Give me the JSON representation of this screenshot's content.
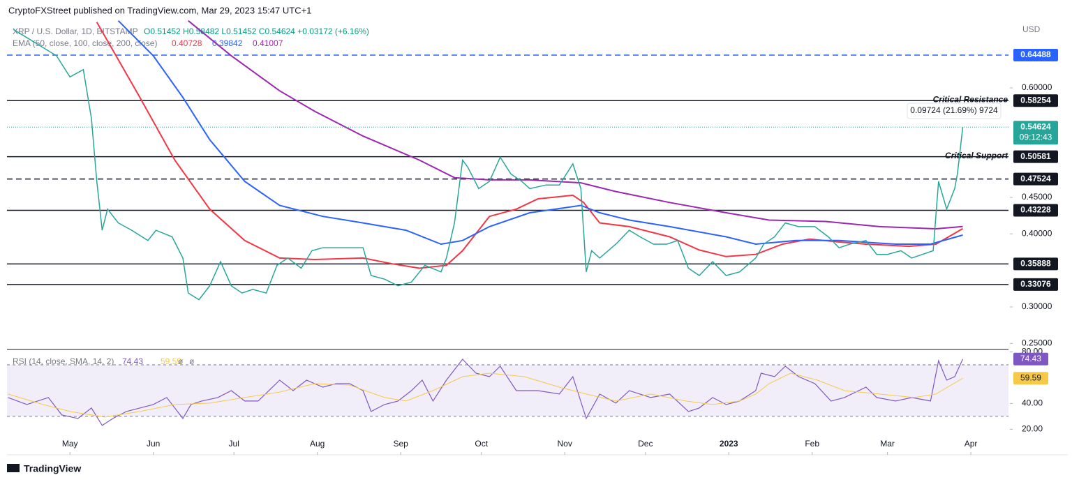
{
  "chart_data": {
    "type": "line",
    "publisher": "CryptoFXStreet published on TradingView.com, Mar 29, 2023 15:47 UTC+1",
    "title": "XRP / U.S. Dollar, 1D, BITSTAMP",
    "ohlc_text": "O0.51452 H0.58482 L0.51452 C0.54624 +0.03172 (+6.16%)",
    "currency": "USD",
    "brand": "TradingView",
    "xlim": [
      6.6,
      379
    ],
    "xticks": [
      {
        "value": 30,
        "label": "May"
      },
      {
        "value": 61,
        "label": "Jun"
      },
      {
        "value": 91,
        "label": "Jul"
      },
      {
        "value": 122,
        "label": "Aug"
      },
      {
        "value": 153,
        "label": "Sep"
      },
      {
        "value": 183,
        "label": "Oct"
      },
      {
        "value": 214,
        "label": "Nov"
      },
      {
        "value": 244,
        "label": "Dec"
      },
      {
        "value": 275,
        "label": "2023"
      },
      {
        "value": 306,
        "label": "Feb"
      },
      {
        "value": 334,
        "label": "Mar"
      },
      {
        "value": 365,
        "label": "Apr"
      }
    ],
    "ylim": [
      0.2427,
      0.6917
    ],
    "yticks": [
      {
        "value": 0.6,
        "label": "0.60000"
      },
      {
        "value": 0.45,
        "label": "0.45000"
      },
      {
        "value": 0.4,
        "label": "0.40000"
      },
      {
        "value": 0.3,
        "label": "0.30000"
      },
      {
        "value": 0.25,
        "label": "0.25000"
      }
    ],
    "price": {
      "color": "#26a69a",
      "countdown": "09:12:43",
      "x": [
        9,
        25,
        30,
        35,
        38,
        40,
        42,
        44,
        48,
        53,
        59,
        62,
        68,
        72,
        74,
        78,
        82,
        86,
        90,
        94,
        98,
        103,
        107,
        111,
        116,
        120,
        124,
        129,
        134,
        139,
        142,
        147,
        152,
        157,
        162,
        168,
        170,
        173,
        176,
        178,
        182,
        186,
        190,
        194,
        198,
        201,
        207,
        212,
        217,
        220,
        222,
        224,
        227,
        233,
        238,
        242,
        247,
        252,
        256,
        260,
        264,
        269,
        274,
        279,
        285,
        288,
        292,
        296,
        301,
        307,
        312,
        316,
        320,
        326,
        330,
        334,
        339,
        343,
        347,
        351,
        353,
        356,
        359,
        360,
        362
      ],
      "values": [
        0.68,
        0.644,
        0.615,
        0.625,
        0.558,
        0.472,
        0.405,
        0.434,
        0.415,
        0.405,
        0.391,
        0.405,
        0.396,
        0.367,
        0.319,
        0.31,
        0.329,
        0.362,
        0.329,
        0.319,
        0.324,
        0.319,
        0.357,
        0.367,
        0.353,
        0.377,
        0.381,
        0.381,
        0.381,
        0.381,
        0.343,
        0.338,
        0.329,
        0.334,
        0.357,
        0.348,
        0.367,
        0.415,
        0.501,
        0.491,
        0.462,
        0.472,
        0.505,
        0.482,
        0.472,
        0.462,
        0.467,
        0.467,
        0.496,
        0.462,
        0.348,
        0.377,
        0.367,
        0.386,
        0.405,
        0.396,
        0.386,
        0.386,
        0.391,
        0.353,
        0.343,
        0.362,
        0.343,
        0.348,
        0.367,
        0.386,
        0.396,
        0.415,
        0.41,
        0.41,
        0.396,
        0.381,
        0.386,
        0.391,
        0.372,
        0.372,
        0.377,
        0.367,
        0.372,
        0.377,
        0.472,
        0.434,
        0.462,
        0.482,
        0.54624
      ]
    },
    "ema": {
      "label": "EMA (50, close, 100, close, 200, close)",
      "series": [
        {
          "color": "#f23645",
          "x": [
            40,
            56,
            69,
            82,
            95,
            108,
            121,
            139,
            150,
            160,
            170,
            176,
            186,
            196,
            204,
            217,
            221,
            227,
            238,
            253,
            264,
            274,
            285,
            295,
            305,
            316,
            326,
            342,
            352,
            362
          ],
          "values": [
            0.69,
            0.587,
            0.501,
            0.434,
            0.391,
            0.367,
            0.365,
            0.367,
            0.359,
            0.353,
            0.357,
            0.377,
            0.424,
            0.434,
            0.448,
            0.453,
            0.443,
            0.415,
            0.41,
            0.396,
            0.378,
            0.369,
            0.372,
            0.386,
            0.393,
            0.389,
            0.386,
            0.383,
            0.386,
            0.40728
          ]
        },
        {
          "color": "#2962ff",
          "x": [
            48,
            61,
            72,
            82,
            95,
            108,
            124,
            139,
            155,
            168,
            176,
            186,
            201,
            220,
            227,
            238,
            253,
            274,
            285,
            300,
            316,
            337,
            350,
            362
          ],
          "values": [
            0.692,
            0.644,
            0.587,
            0.529,
            0.472,
            0.439,
            0.424,
            0.415,
            0.405,
            0.386,
            0.391,
            0.41,
            0.429,
            0.439,
            0.429,
            0.419,
            0.41,
            0.396,
            0.386,
            0.391,
            0.391,
            0.386,
            0.386,
            0.39842
          ]
        },
        {
          "color": "#9c27b0",
          "x": [
            74,
            90,
            108,
            121,
            139,
            160,
            173,
            186,
            201,
            220,
            233,
            253,
            274,
            290,
            311,
            331,
            352,
            362
          ],
          "values": [
            0.692,
            0.644,
            0.596,
            0.568,
            0.534,
            0.501,
            0.477,
            0.474,
            0.474,
            0.47,
            0.458,
            0.443,
            0.429,
            0.419,
            0.417,
            0.41,
            0.407,
            0.41007
          ]
        }
      ]
    },
    "levels": [
      {
        "value": 0.64488,
        "dashed": true,
        "color": "#2962ff",
        "label_color": "#2962ff"
      },
      {
        "value": 0.58254,
        "dashed": false,
        "color": "#131722",
        "label_color": "#131722"
      },
      {
        "value": 0.50581,
        "dashed": false,
        "color": "#131722",
        "label_color": "#131722"
      },
      {
        "value": 0.47524,
        "dashed": true,
        "color": "#131722",
        "label_color": "#131722"
      },
      {
        "value": 0.43228,
        "dashed": false,
        "color": "#131722",
        "label_color": "#131722"
      },
      {
        "value": 0.35888,
        "dashed": false,
        "color": "#131722",
        "label_color": "#131722"
      },
      {
        "value": 0.33076,
        "dashed": false,
        "color": "#131722",
        "label_color": "#131722"
      }
    ],
    "annotations": {
      "resistance": "Critical Resistance",
      "support": "Critical Support",
      "measure": "0.09724 (21.69%) 9724"
    },
    "rsi": {
      "label": "RSI (14, close, SMA, 14, 2)",
      "na_labels": [
        "ø",
        "ø"
      ],
      "ylim": [
        13.2,
        80.8
      ],
      "band": [
        30,
        70
      ],
      "yticks": [
        {
          "value": 80,
          "label": "80.00"
        },
        {
          "value": 40,
          "label": "40.00"
        },
        {
          "value": 20,
          "label": "20.00"
        }
      ],
      "series": [
        {
          "color": "#7e57c2",
          "x": [
            7,
            14,
            22,
            27,
            33,
            38,
            42,
            46,
            51,
            56,
            61,
            66,
            72,
            75,
            79,
            85,
            90,
            95,
            100,
            108,
            113,
            118,
            124,
            129,
            134,
            139,
            142,
            147,
            152,
            157,
            161,
            165,
            170,
            176,
            181,
            186,
            190,
            196,
            204,
            212,
            217,
            222,
            227,
            233,
            238,
            246,
            253,
            260,
            264,
            269,
            274,
            279,
            285,
            287,
            292,
            296,
            301,
            307,
            313,
            318,
            326,
            330,
            337,
            343,
            350,
            353,
            356,
            359,
            362
          ],
          "values": [
            44.6,
            39.2,
            44.6,
            31.1,
            28.4,
            36.5,
            23.0,
            28.4,
            33.8,
            36.5,
            39.2,
            44.6,
            28.4,
            39.2,
            41.9,
            44.6,
            50.0,
            41.9,
            41.9,
            58.1,
            50.0,
            58.1,
            52.7,
            55.4,
            55.4,
            50.0,
            33.8,
            39.2,
            41.9,
            50.0,
            58.1,
            41.9,
            58.1,
            74.3,
            63.5,
            60.8,
            68.9,
            50.0,
            50.0,
            47.3,
            60.8,
            28.4,
            47.3,
            40.3,
            50.0,
            44.6,
            47.3,
            33.8,
            36.5,
            44.6,
            39.2,
            41.9,
            50.0,
            63.5,
            60.8,
            68.9,
            60.8,
            55.4,
            41.9,
            44.6,
            52.7,
            44.6,
            41.9,
            44.6,
            41.9,
            73.2,
            58.1,
            60.8,
            74.43
          ]
        },
        {
          "color": "#f7c948",
          "x": [
            7,
            20,
            30,
            43,
            56,
            69,
            82,
            95,
            108,
            121,
            134,
            147,
            155,
            165,
            176,
            186,
            199,
            212,
            222,
            233,
            246,
            259,
            269,
            279,
            285,
            290,
            298,
            308,
            318,
            331,
            344,
            352,
            362
          ],
          "values": [
            47.3,
            39.2,
            33.8,
            29.5,
            33.8,
            39.2,
            40.3,
            44.6,
            48.9,
            55.4,
            54.3,
            44.6,
            41.9,
            50.0,
            60.8,
            63.5,
            60.8,
            52.7,
            47.3,
            41.9,
            47.3,
            41.9,
            39.2,
            41.9,
            47.3,
            55.4,
            63.5,
            58.1,
            50.0,
            47.3,
            44.6,
            47.3,
            59.59
          ]
        }
      ]
    }
  }
}
